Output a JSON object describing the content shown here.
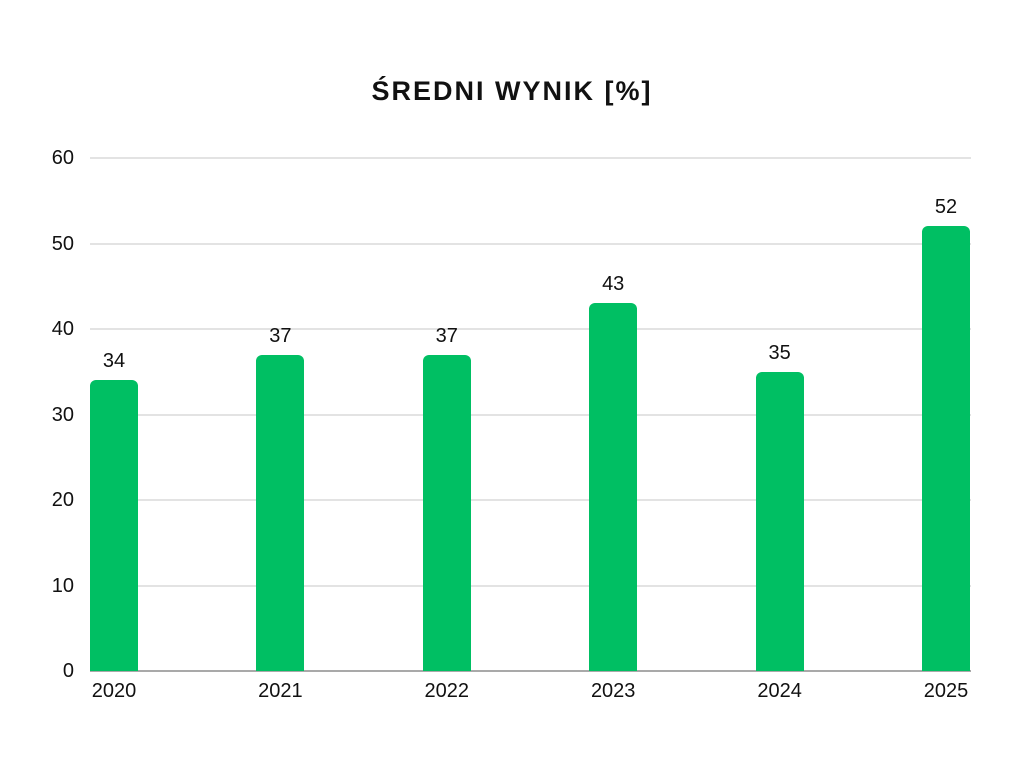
{
  "title": "ŚREDNI WYNIK [%]",
  "chart_data": {
    "type": "bar",
    "title": "ŚREDNI WYNIK [%]",
    "categories": [
      "2020",
      "2021",
      "2022",
      "2023",
      "2024",
      "2025"
    ],
    "values": [
      34,
      37,
      37,
      43,
      35,
      52
    ],
    "value_labels_shown": true,
    "xlabel": "",
    "ylabel": "",
    "ylim": [
      0,
      60
    ],
    "yticks": [
      0,
      10,
      20,
      30,
      40,
      50,
      60
    ],
    "grid": true,
    "legend": "none"
  },
  "colors": {
    "bar": "#00bf63",
    "gridline": "#e3e3e3",
    "baseline": "#a9a9a9",
    "text": "#111111",
    "background": "#ffffff"
  }
}
